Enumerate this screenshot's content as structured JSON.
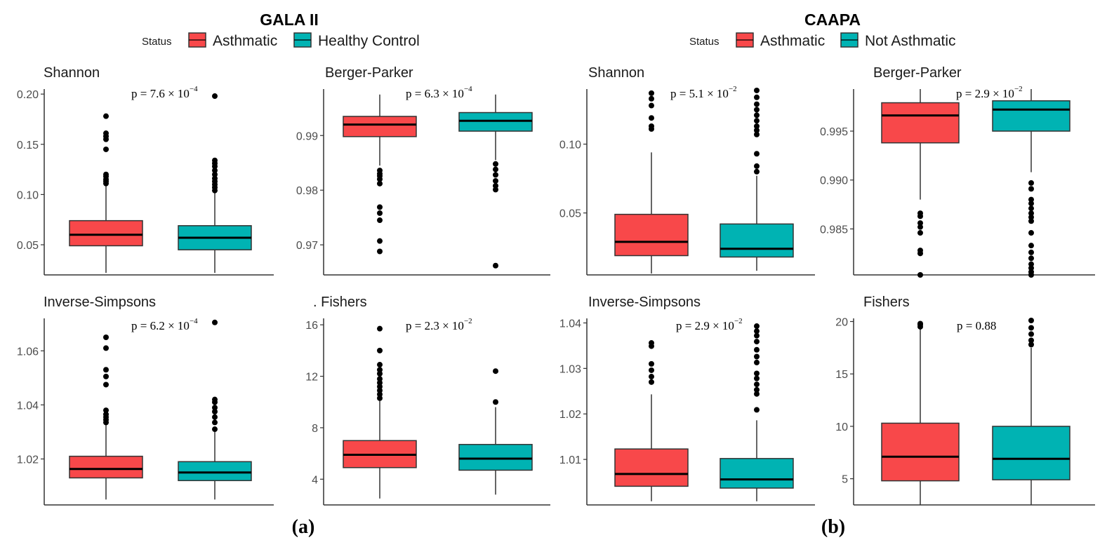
{
  "colors": {
    "asthmatic": "#F8484A",
    "control": "#00B3B3",
    "median": "#000000",
    "outline": "#333333",
    "axis": "#333333"
  },
  "chart_data": [
    {
      "dataset": "GALA II",
      "sublabel": "(a)",
      "legend": {
        "title": "Status",
        "entries": [
          "Asthmatic",
          "Healthy Control"
        ]
      },
      "panels": [
        {
          "type": "box",
          "title": "Shannon",
          "p_label": {
            "base": "p = ",
            "mantissa": "7.6 × 10",
            "exponent": "−4"
          },
          "ylim": [
            0.02,
            0.205
          ],
          "yticks": [
            0.05,
            0.1,
            0.15,
            0.2
          ],
          "tick_labels": [
            "0.05",
            "0.10",
            "0.15",
            "0.20"
          ],
          "series": [
            {
              "name": "Asthmatic",
              "q1": 0.049,
              "median": 0.06,
              "q3": 0.074,
              "whisker_low": 0.022,
              "whisker_high": 0.11,
              "outliers": [
                0.111,
                0.113,
                0.115,
                0.118,
                0.12,
                0.145,
                0.155,
                0.158,
                0.161,
                0.178
              ]
            },
            {
              "name": "Healthy Control",
              "q1": 0.045,
              "median": 0.057,
              "q3": 0.069,
              "whisker_low": 0.022,
              "whisker_high": 0.103,
              "outliers": [
                0.104,
                0.107,
                0.11,
                0.113,
                0.116,
                0.12,
                0.124,
                0.128,
                0.131,
                0.134,
                0.198
              ]
            }
          ]
        },
        {
          "type": "box",
          "title": "Berger-Parker",
          "p_label": {
            "base": "p =",
            "mantissa": "6.3 × 10",
            "exponent": "−4"
          },
          "ylim": [
            0.9645,
            0.9985
          ],
          "yticks": [
            0.97,
            0.98,
            0.99
          ],
          "tick_labels": [
            "0.97",
            "0.98",
            "0.99"
          ],
          "series": [
            {
              "name": "Asthmatic",
              "q1": 0.9898,
              "median": 0.992,
              "q3": 0.9935,
              "whisker_low": 0.9845,
              "whisker_high": 0.9975,
              "outliers": [
                0.9836,
                0.983,
                0.9826,
                0.982,
                0.9812,
                0.9769,
                0.9758,
                0.9745,
                0.9707,
                0.9688
              ]
            },
            {
              "name": "Healthy Control",
              "q1": 0.9908,
              "median": 0.9927,
              "q3": 0.9942,
              "whisker_low": 0.9855,
              "whisker_high": 0.9975,
              "outliers": [
                0.9848,
                0.9838,
                0.9828,
                0.9817,
                0.9808,
                0.9801,
                0.9662
              ]
            }
          ]
        },
        {
          "type": "box",
          "title": "Inverse-Simpsons",
          "p_label": {
            "base": "p = ",
            "mantissa": "6.2 × 10",
            "exponent": "−4"
          },
          "ylim": [
            1.003,
            1.072
          ],
          "yticks": [
            1.02,
            1.04,
            1.06
          ],
          "tick_labels": [
            "1.02",
            "1.04",
            "1.06"
          ],
          "series": [
            {
              "name": "Asthmatic",
              "q1": 1.013,
              "median": 1.0163,
              "q3": 1.021,
              "whisker_low": 1.005,
              "whisker_high": 1.033,
              "outliers": [
                1.0335,
                1.0345,
                1.0355,
                1.0365,
                1.038,
                1.0475,
                1.0505,
                1.053,
                1.061,
                1.065
              ]
            },
            {
              "name": "Healthy Control",
              "q1": 1.012,
              "median": 1.015,
              "q3": 1.019,
              "whisker_low": 1.005,
              "whisker_high": 1.03,
              "outliers": [
                1.031,
                1.0335,
                1.0355,
                1.0375,
                1.039,
                1.041,
                1.042,
                1.0705
              ]
            }
          ]
        },
        {
          "type": "box",
          "title": ". Fishers",
          "p_label": {
            "base": "p = ",
            "mantissa": "2.3 × 10",
            "exponent": "−2"
          },
          "ylim": [
            2.0,
            16.5
          ],
          "yticks": [
            4,
            8,
            12,
            16
          ],
          "tick_labels": [
            "4",
            "8",
            "12",
            "16"
          ],
          "series": [
            {
              "name": "Asthmatic",
              "q1": 4.9,
              "median": 5.9,
              "q3": 7.0,
              "whisker_low": 2.5,
              "whisker_high": 10.1,
              "outliers": [
                10.3,
                10.6,
                10.9,
                11.2,
                11.5,
                11.8,
                12.2,
                12.5,
                12.9,
                14.0,
                15.7
              ]
            },
            {
              "name": "Healthy Control",
              "q1": 4.7,
              "median": 5.6,
              "q3": 6.7,
              "whisker_low": 2.8,
              "whisker_high": 9.6,
              "outliers": [
                10.0,
                12.4
              ]
            }
          ]
        }
      ]
    },
    {
      "dataset": "CAAPA",
      "sublabel": "(b)",
      "legend": {
        "title": "Status",
        "entries": [
          "Asthmatic",
          "Not Asthmatic"
        ]
      },
      "panels": [
        {
          "type": "box",
          "title": "Shannon",
          "p_label": {
            "base": "p =",
            "mantissa": "5.1 × 10",
            "exponent": "−2"
          },
          "ylim": [
            0.005,
            0.14
          ],
          "yticks": [
            0.05,
            0.1
          ],
          "tick_labels": [
            "0.05",
            "0.10"
          ],
          "series": [
            {
              "name": "Asthmatic",
              "q1": 0.019,
              "median": 0.029,
              "q3": 0.049,
              "whisker_low": 0.006,
              "whisker_high": 0.094,
              "outliers": [
                0.111,
                0.113,
                0.119,
                0.128,
                0.133,
                0.137
              ]
            },
            {
              "name": "Not Asthmatic",
              "q1": 0.018,
              "median": 0.024,
              "q3": 0.042,
              "whisker_low": 0.008,
              "whisker_high": 0.077,
              "outliers": [
                0.08,
                0.084,
                0.093,
                0.107,
                0.11,
                0.113,
                0.117,
                0.121,
                0.125,
                0.129,
                0.134,
                0.139
              ]
            }
          ]
        },
        {
          "type": "box",
          "title": "Berger-Parker",
          "p_label": {
            "base": "p = ",
            "mantissa": "2.9 × 10",
            "exponent": "−2"
          },
          "ylim": [
            0.9803,
            0.9993
          ],
          "yticks": [
            0.985,
            0.99,
            0.995
          ],
          "tick_labels": [
            "0.985",
            "0.990",
            "0.995"
          ],
          "series": [
            {
              "name": "Asthmatic",
              "q1": 0.9938,
              "median": 0.9966,
              "q3": 0.9979,
              "whisker_low": 0.988,
              "whisker_high": 0.9993,
              "outliers": [
                0.9866,
                0.9863,
                0.9856,
                0.9852,
                0.9846,
                0.9828,
                0.9825,
                0.9803
              ]
            },
            {
              "name": "Not Asthmatic",
              "q1": 0.995,
              "median": 0.9972,
              "q3": 0.9981,
              "whisker_low": 0.9908,
              "whisker_high": 0.9993,
              "outliers": [
                0.9897,
                0.9891,
                0.988,
                0.9876,
                0.9871,
                0.9866,
                0.9862,
                0.9858,
                0.9846,
                0.9833,
                0.9826,
                0.982,
                0.9814,
                0.981,
                0.9806,
                0.9803
              ]
            }
          ]
        },
        {
          "type": "box",
          "title": "Inverse-Simpsons",
          "p_label": {
            "base": "p =",
            "mantissa": "2.9 × 10",
            "exponent": "−2"
          },
          "ylim": [
            1.0,
            1.041
          ],
          "yticks": [
            1.01,
            1.02,
            1.03,
            1.04
          ],
          "tick_labels": [
            "1.01",
            "1.02",
            "1.03",
            "1.04"
          ],
          "series": [
            {
              "name": "Asthmatic",
              "q1": 1.0041,
              "median": 1.0068,
              "q3": 1.0123,
              "whisker_low": 1.0008,
              "whisker_high": 1.0243,
              "outliers": [
                1.027,
                1.0282,
                1.0296,
                1.031,
                1.0349,
                1.0356
              ]
            },
            {
              "name": "Not Asthmatic",
              "q1": 1.0037,
              "median": 1.0056,
              "q3": 1.0102,
              "whisker_low": 1.0008,
              "whisker_high": 1.0186,
              "outliers": [
                1.0209,
                1.0244,
                1.0253,
                1.0265,
                1.0278,
                1.0289,
                1.0313,
                1.0326,
                1.0341,
                1.0359,
                1.0372,
                1.0382,
                1.0393
              ]
            }
          ]
        },
        {
          "type": "box",
          "title": "Fishers",
          "p_label": {
            "base": "p = 0.88",
            "mantissa": "",
            "exponent": ""
          },
          "ylim": [
            2.5,
            20.3
          ],
          "yticks": [
            5,
            10,
            15,
            20
          ],
          "tick_labels": [
            "5",
            "10",
            "15",
            "20"
          ],
          "series": [
            {
              "name": "Asthmatic",
              "q1": 4.8,
              "median": 7.1,
              "q3": 10.3,
              "whisker_low": 2.5,
              "whisker_high": 19.3,
              "outliers": [
                19.5,
                19.7,
                19.8
              ]
            },
            {
              "name": "Not Asthmatic",
              "q1": 4.9,
              "median": 6.9,
              "q3": 10.0,
              "whisker_low": 2.5,
              "whisker_high": 17.5,
              "outliers": [
                17.8,
                18.2,
                18.8,
                19.4,
                20.1
              ]
            }
          ]
        }
      ]
    }
  ]
}
